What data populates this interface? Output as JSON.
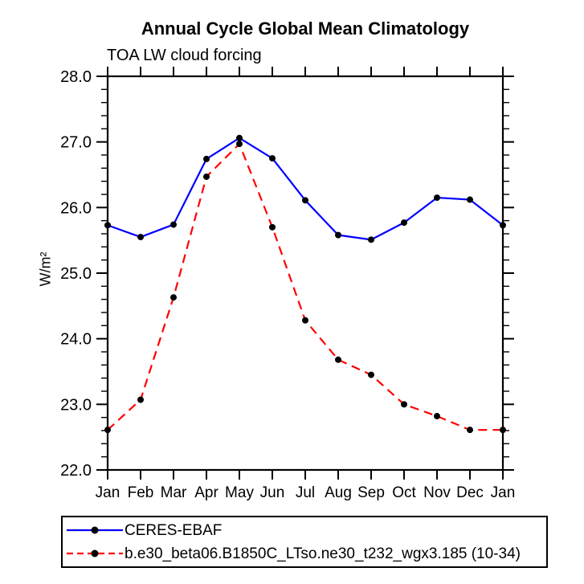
{
  "chart_data": {
    "type": "line",
    "title": "Annual Cycle Global Mean Climatology",
    "subtitle": "TOA LW cloud forcing",
    "ylabel": "W/m²",
    "xlabel": "",
    "categories": [
      "Jan",
      "Feb",
      "Mar",
      "Apr",
      "May",
      "Jun",
      "Jul",
      "Aug",
      "Sep",
      "Oct",
      "Nov",
      "Dec",
      "Jan"
    ],
    "ylim": [
      22.0,
      28.0
    ],
    "ytick_step": 1.0,
    "ytick_minor_step": 0.2,
    "ytick_labels": [
      "22.0",
      "23.0",
      "24.0",
      "25.0",
      "26.0",
      "27.0",
      "28.0"
    ],
    "grid": false,
    "legend_position": "bottom",
    "frame_color": "#000000",
    "marker_color": "#000000",
    "series": [
      {
        "name": "CERES-EBAF",
        "color": "#0000ff",
        "style": "solid",
        "marker": "circle",
        "values": [
          25.73,
          25.55,
          25.74,
          26.74,
          27.06,
          26.75,
          26.11,
          25.58,
          25.51,
          25.77,
          26.15,
          26.12,
          25.73
        ]
      },
      {
        "name": "b.e30_beta06.B1850C_LTso.ne30_t232_wgx3.185 (10-34)",
        "color": "#ff0000",
        "style": "dashed",
        "marker": "circle",
        "values": [
          22.61,
          23.07,
          24.63,
          26.47,
          26.97,
          25.7,
          24.28,
          23.68,
          23.45,
          23.0,
          22.82,
          22.61,
          22.61
        ]
      }
    ]
  }
}
